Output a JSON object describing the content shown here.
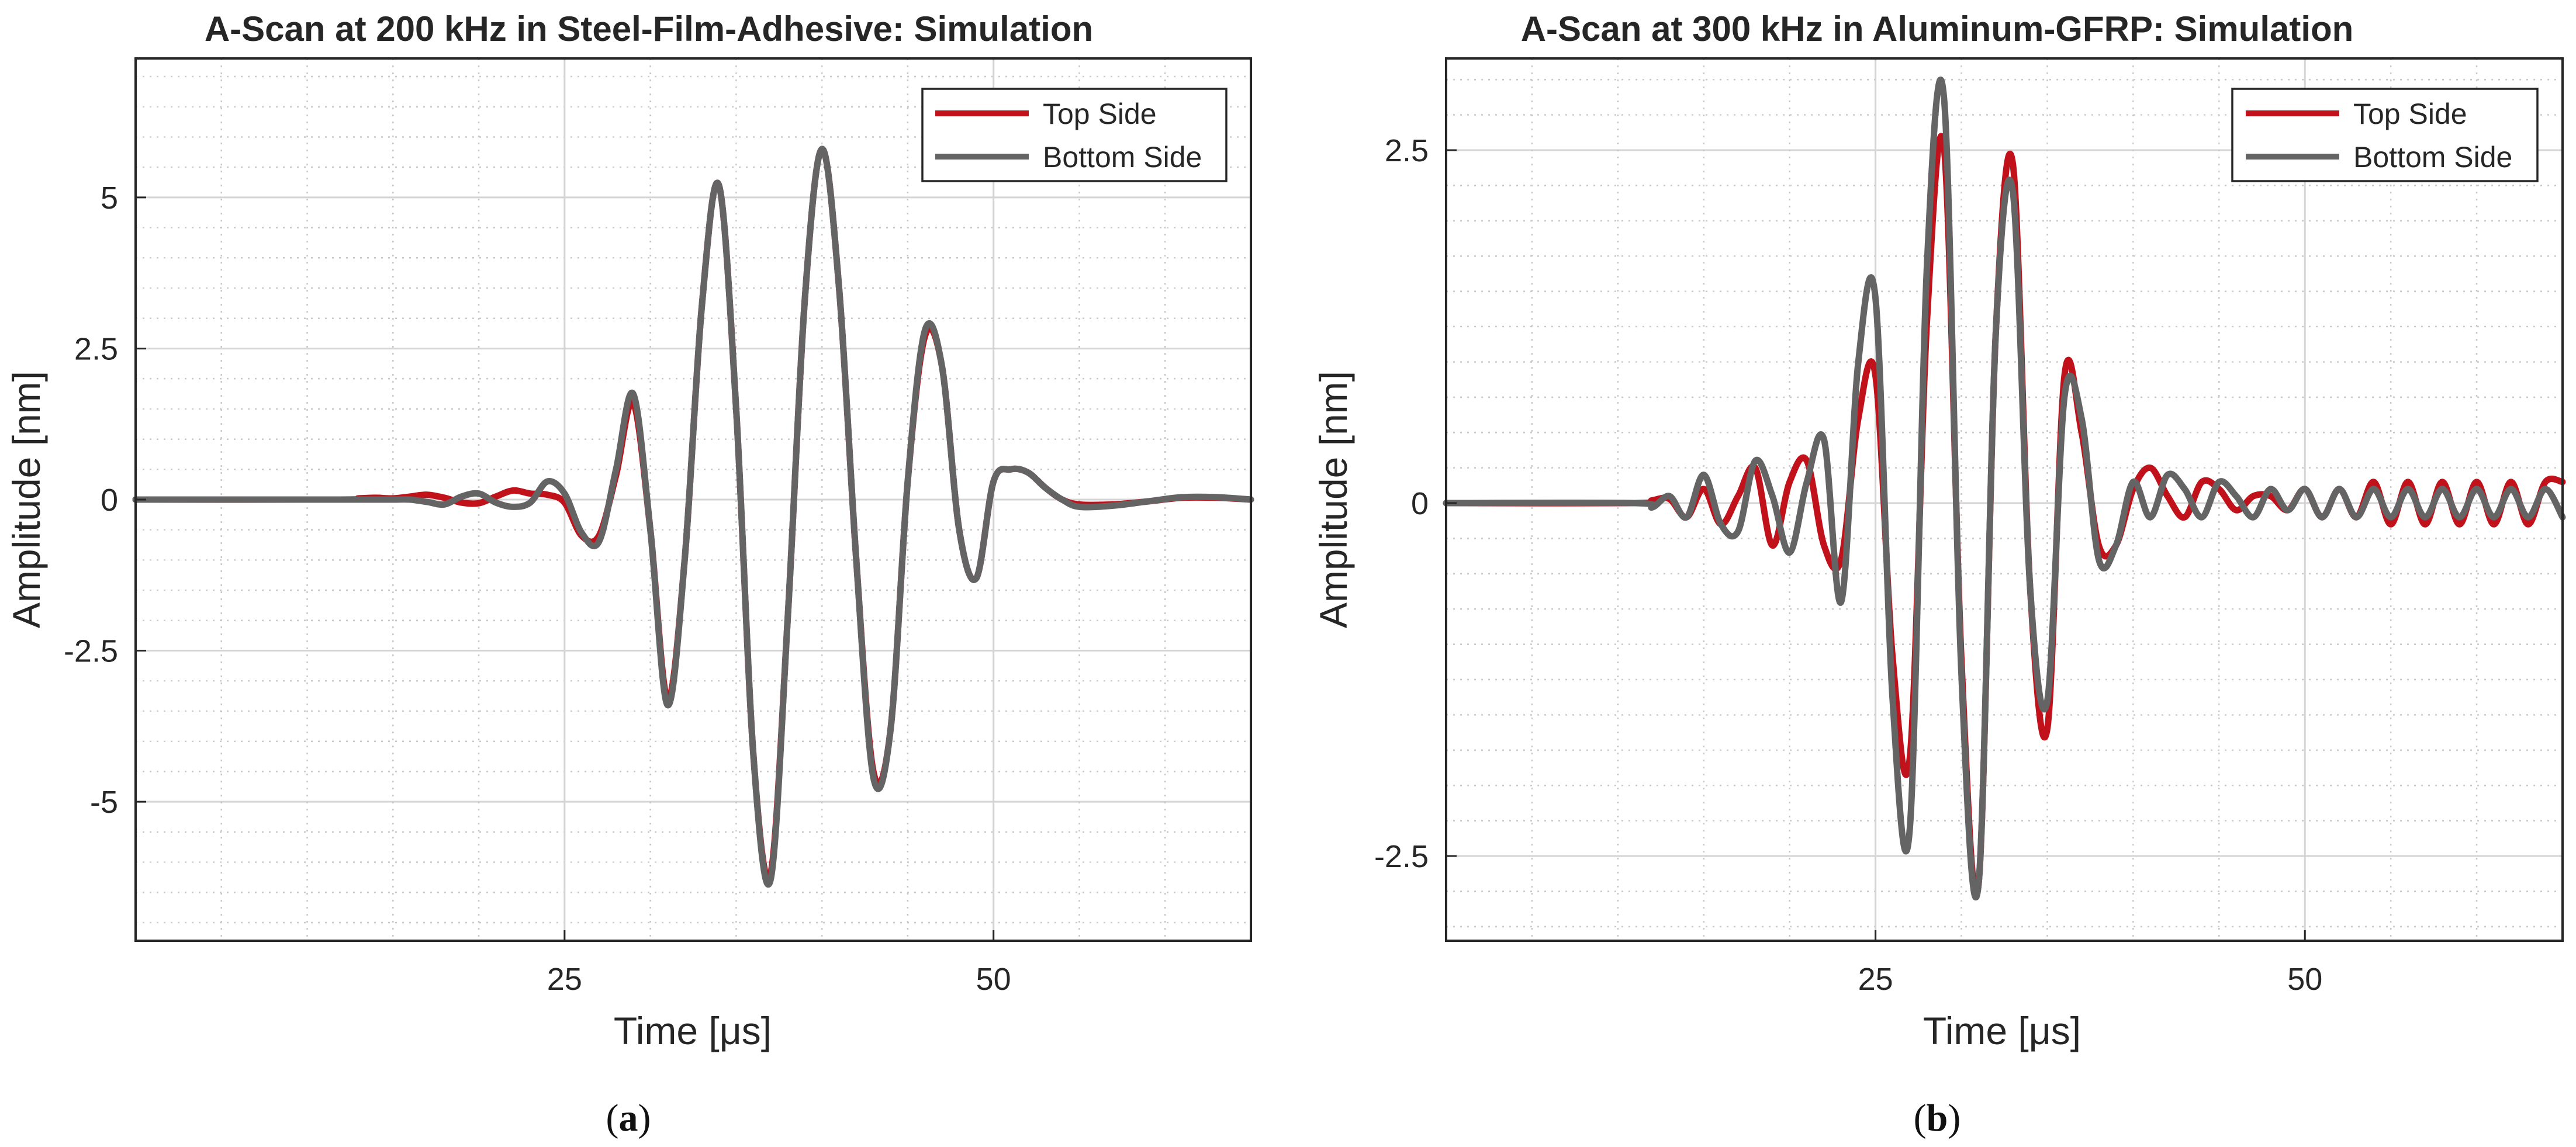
{
  "chart_data": [
    {
      "type": "line",
      "panel_label": "a",
      "title": "A-Scan at 200 kHz in Steel-Film-Adhesive:  Simulation",
      "xlabel": "Time [μs]",
      "ylabel": "Amplitude [nm]",
      "xlim": [
        0,
        65
      ],
      "ylim": [
        -7.3,
        7.3
      ],
      "xticks": [
        25,
        50
      ],
      "xtick_labels": [
        "25",
        "50"
      ],
      "yticks": [
        5,
        2.5,
        0,
        -2.5,
        -5
      ],
      "ytick_labels": [
        "5",
        "2.5",
        "0",
        "-2.5",
        "-5"
      ],
      "grid": true,
      "legend_position": "top-right",
      "series": [
        {
          "name": "Top Side",
          "color": "#c1121c",
          "x": [
            0,
            12,
            13,
            14,
            15,
            16,
            17,
            18,
            19,
            20,
            21,
            22,
            23,
            24,
            25,
            26,
            27,
            28,
            29,
            30,
            31,
            32,
            33,
            34,
            35,
            36,
            37,
            38,
            39,
            40,
            41,
            42,
            43,
            44,
            45,
            46,
            47,
            48,
            49,
            50,
            51,
            52,
            53,
            54,
            55,
            57,
            59,
            61,
            63,
            65
          ],
          "values": [
            0,
            0,
            0.02,
            0.03,
            0.02,
            0.05,
            0.08,
            0.03,
            -0.05,
            -0.06,
            0.05,
            0.15,
            0.1,
            0.08,
            -0.05,
            -0.6,
            -0.6,
            0.4,
            1.6,
            -0.5,
            -3.3,
            -1.0,
            3.2,
            5.2,
            1.5,
            -4.2,
            -6.2,
            -2.0,
            3.3,
            5.8,
            3.5,
            -1.0,
            -4.5,
            -3.8,
            0.3,
            2.7,
            2.2,
            -0.5,
            -1.3,
            0.3,
            0.5,
            0.45,
            0.2,
            0,
            -0.08,
            -0.08,
            -0.03,
            0.03,
            0.03,
            0
          ]
        },
        {
          "name": "Bottom Side",
          "color": "#646464",
          "x": [
            0,
            12,
            13,
            14,
            15,
            16,
            17,
            18,
            19,
            20,
            21,
            22,
            23,
            24,
            25,
            26,
            27,
            28,
            29,
            30,
            31,
            32,
            33,
            34,
            35,
            36,
            37,
            38,
            39,
            40,
            41,
            42,
            43,
            44,
            45,
            46,
            47,
            48,
            49,
            50,
            51,
            52,
            53,
            54,
            55,
            57,
            59,
            61,
            63,
            65
          ],
          "values": [
            0,
            0,
            0,
            0,
            0,
            0,
            -0.04,
            -0.08,
            0.05,
            0.1,
            -0.05,
            -0.12,
            -0.05,
            0.3,
            0.1,
            -0.55,
            -0.7,
            0.5,
            1.75,
            -0.5,
            -3.4,
            -1.0,
            3.2,
            5.2,
            1.5,
            -4.2,
            -6.3,
            -2.0,
            3.3,
            5.8,
            3.5,
            -1.0,
            -4.6,
            -3.8,
            0.3,
            2.8,
            2.2,
            -0.5,
            -1.3,
            0.3,
            0.5,
            0.45,
            0.2,
            0,
            -0.12,
            -0.1,
            -0.03,
            0.04,
            0.04,
            0
          ]
        }
      ]
    },
    {
      "type": "line",
      "panel_label": "b",
      "title": "A-Scan at 300 kHz in Aluminum-GFRP:  Simulation",
      "xlabel": "Time [μs]",
      "ylabel": "Amplitude [nm]",
      "xlim": [
        0,
        65
      ],
      "ylim": [
        -3.1,
        3.15
      ],
      "xticks": [
        25,
        50
      ],
      "xtick_labels": [
        "25",
        "50"
      ],
      "yticks": [
        2.5,
        0,
        -2.5
      ],
      "ytick_labels": [
        "2.5",
        "0",
        "-2.5"
      ],
      "grid": true,
      "legend_position": "top-right",
      "series": [
        {
          "name": "Top Side",
          "color": "#c1121c",
          "x": [
            0,
            11,
            12,
            13,
            14,
            15,
            16,
            17,
            18,
            19,
            20,
            21,
            22,
            23,
            24,
            25,
            26,
            27,
            28,
            29,
            30,
            31,
            32,
            33,
            34,
            35,
            36,
            37,
            38,
            39,
            40,
            41,
            42,
            43,
            44,
            45,
            46,
            47,
            48,
            49,
            50,
            51,
            52,
            53,
            54,
            55,
            56,
            57,
            58,
            59,
            60,
            61,
            62,
            63,
            64,
            65
          ],
          "values": [
            0,
            0,
            0.02,
            0.03,
            -0.1,
            0.1,
            -0.15,
            0.05,
            0.25,
            -0.3,
            0.15,
            0.3,
            -0.3,
            -0.4,
            0.6,
            0.9,
            -1.1,
            -1.8,
            1.3,
            2.5,
            -1.1,
            -2.7,
            1.2,
            2.4,
            -0.6,
            -1.6,
            0.9,
            0.5,
            -0.3,
            -0.3,
            0.1,
            0.25,
            0.05,
            -0.1,
            0.15,
            0.1,
            -0.05,
            0.05,
            0.05,
            -0.05,
            0.1,
            -0.1,
            0.1,
            -0.1,
            0.15,
            -0.15,
            0.15,
            -0.15,
            0.15,
            -0.15,
            0.15,
            -0.15,
            0.15,
            -0.15,
            0.15,
            0.15
          ]
        },
        {
          "name": "Bottom Side",
          "color": "#646464",
          "x": [
            0,
            11,
            12,
            13,
            14,
            15,
            16,
            17,
            18,
            19,
            20,
            21,
            22,
            23,
            24,
            25,
            26,
            27,
            28,
            29,
            30,
            31,
            32,
            33,
            34,
            35,
            36,
            37,
            38,
            39,
            40,
            41,
            42,
            43,
            44,
            45,
            46,
            47,
            48,
            49,
            50,
            51,
            52,
            53,
            54,
            55,
            56,
            57,
            58,
            59,
            60,
            61,
            62,
            63,
            64,
            65
          ],
          "values": [
            0,
            0,
            -0.03,
            0.05,
            -0.1,
            0.2,
            -0.15,
            -0.2,
            0.3,
            0.05,
            -0.35,
            0.15,
            0.45,
            -0.7,
            1.0,
            1.45,
            -1.4,
            -2.3,
            1.7,
            2.85,
            -1.2,
            -2.7,
            1.2,
            2.2,
            -0.6,
            -1.4,
            0.75,
            0.6,
            -0.4,
            -0.3,
            0.15,
            -0.1,
            0.2,
            0.1,
            -0.1,
            0.15,
            0.05,
            -0.1,
            0.1,
            -0.05,
            0.1,
            -0.1,
            0.1,
            -0.1,
            0.1,
            -0.1,
            0.1,
            -0.1,
            0.1,
            -0.1,
            0.1,
            -0.1,
            0.1,
            -0.1,
            0.1,
            -0.1
          ]
        }
      ]
    }
  ]
}
